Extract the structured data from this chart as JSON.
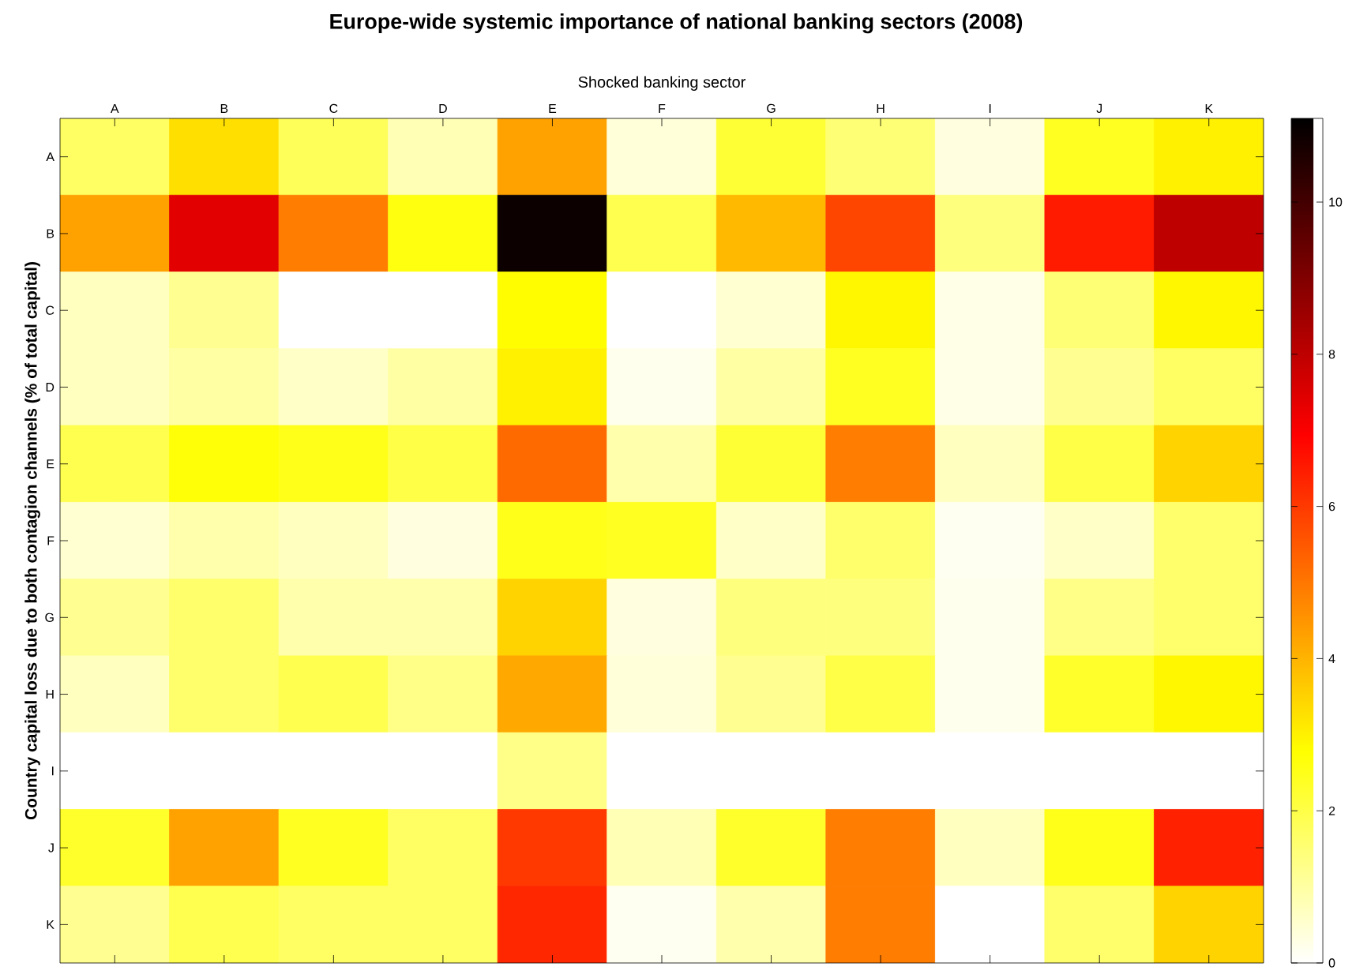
{
  "chart_data": {
    "type": "heatmap",
    "title": "Europe-wide systemic importance of national banking sectors (2008)",
    "xlabel": "Shocked banking sector",
    "ylabel": "Country capital loss due to both contagion channels (% of total capital)",
    "categories": [
      "A",
      "B",
      "C",
      "D",
      "E",
      "F",
      "G",
      "H",
      "I",
      "J",
      "K"
    ],
    "y_categories": [
      "A",
      "B",
      "C",
      "D",
      "E",
      "F",
      "G",
      "H",
      "I",
      "J",
      "K"
    ],
    "cells": [
      [
        1.7,
        3.3,
        1.8,
        0.8,
        4.3,
        0.4,
        2.2,
        1.5,
        0.35,
        2.4,
        3.0
      ],
      [
        4.3,
        7.4,
        4.9,
        2.6,
        10.9,
        1.9,
        3.9,
        5.8,
        1.4,
        6.5,
        8.0
      ],
      [
        0.7,
        1.2,
        0,
        0,
        2.8,
        0,
        0.5,
        2.9,
        0.25,
        1.5,
        2.9
      ],
      [
        0.7,
        1.0,
        0.6,
        1.0,
        3.0,
        0.2,
        1.0,
        2.4,
        0.25,
        1.2,
        1.7
      ],
      [
        1.9,
        2.7,
        2.5,
        2.0,
        5.2,
        0.9,
        2.2,
        4.9,
        0.7,
        2.0,
        3.5
      ],
      [
        0.5,
        0.9,
        0.7,
        0.35,
        2.5,
        2.4,
        0.6,
        1.6,
        0.15,
        0.6,
        1.6
      ],
      [
        1.2,
        1.6,
        0.9,
        0.9,
        3.5,
        0.35,
        1.4,
        1.4,
        0.2,
        1.3,
        1.6
      ],
      [
        0.7,
        1.6,
        1.9,
        1.3,
        4.2,
        0.4,
        1.2,
        2.0,
        0.2,
        2.3,
        2.9
      ],
      [
        0,
        0,
        0,
        0,
        1.3,
        0,
        0,
        0,
        0,
        0,
        0
      ],
      [
        2.3,
        4.3,
        2.4,
        1.7,
        6.0,
        0.8,
        2.3,
        4.9,
        0.7,
        2.5,
        6.4
      ],
      [
        1.2,
        1.9,
        1.7,
        1.7,
        6.3,
        0.15,
        0.9,
        4.9,
        0,
        1.6,
        3.5
      ]
    ],
    "clim": [
      0,
      11.1
    ],
    "cticks": [
      0,
      2,
      4,
      6,
      8,
      10
    ]
  }
}
